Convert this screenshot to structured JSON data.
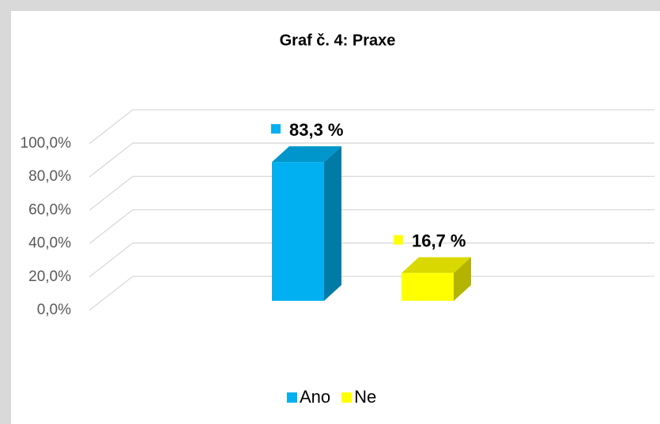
{
  "chart_data": {
    "type": "bar3d",
    "title": "Graf č. 4: Praxe",
    "categories": [
      null
    ],
    "series": [
      {
        "name": "Ano",
        "color": "#00b0f0",
        "values": [
          83.3
        ],
        "value_labels": [
          "83,3 %"
        ]
      },
      {
        "name": "Ne",
        "color": "#ffff00",
        "values": [
          16.7
        ],
        "value_labels": [
          "16,7 %"
        ]
      }
    ],
    "ylim": [
      0,
      100
    ],
    "yticks": [
      {
        "value": 0,
        "label": "0,0%"
      },
      {
        "value": 20,
        "label": "20,0%"
      },
      {
        "value": 40,
        "label": "40,0%"
      },
      {
        "value": 60,
        "label": "60,0%"
      },
      {
        "value": 80,
        "label": "80,0%"
      },
      {
        "value": 100,
        "label": "100,0%"
      }
    ],
    "grid": true,
    "legend": "bottom"
  }
}
